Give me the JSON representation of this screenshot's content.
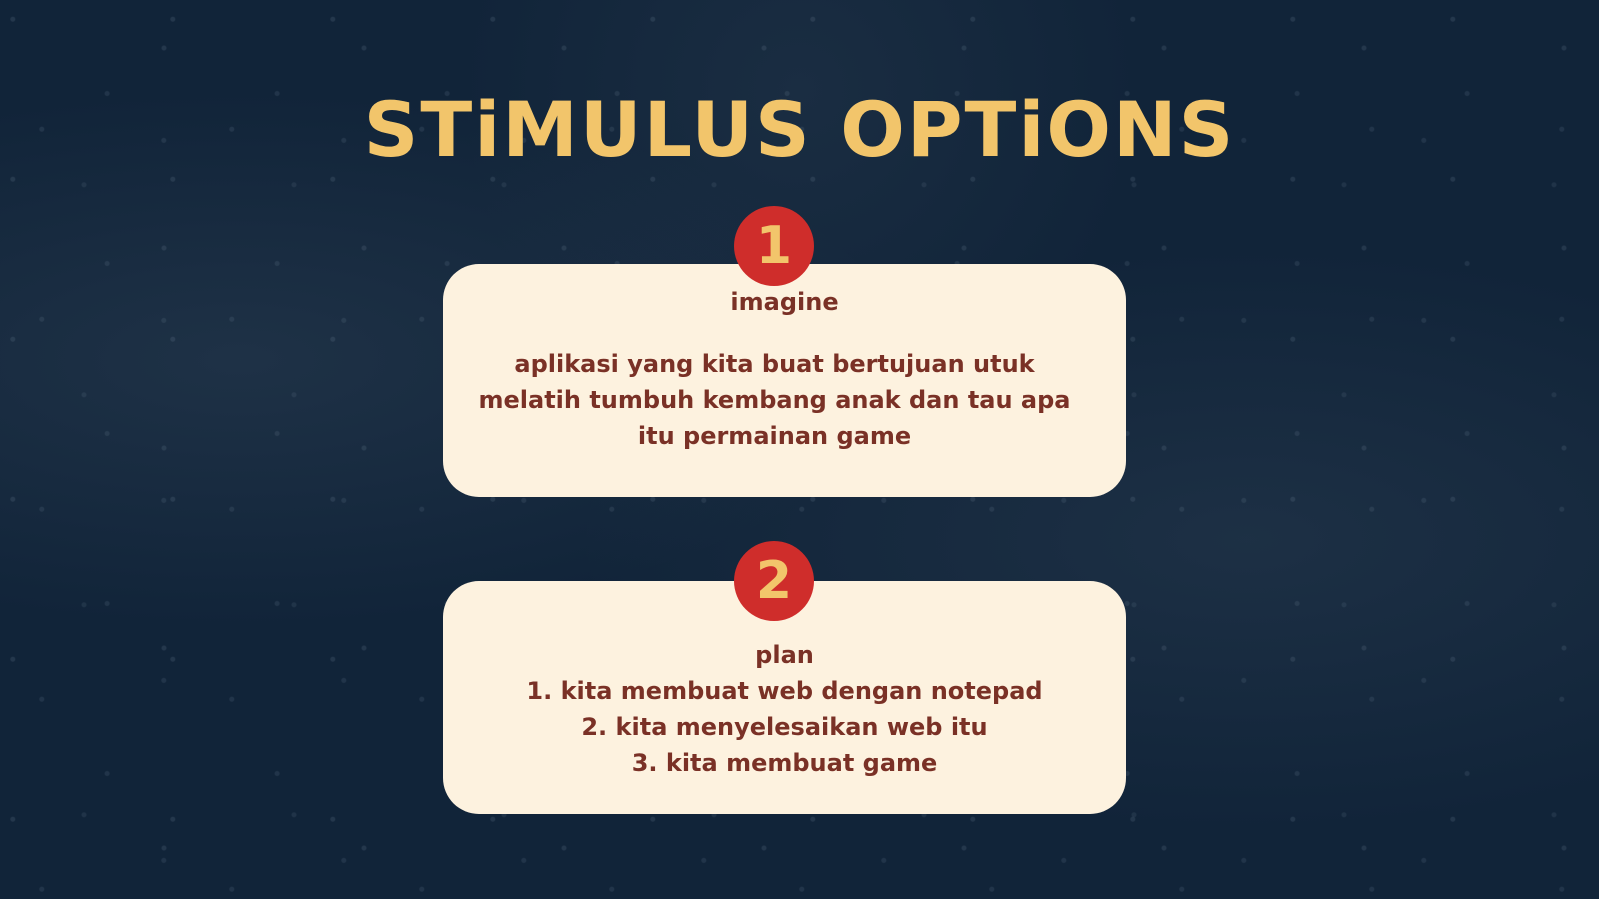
{
  "title": "STiMULUS OPTiONS",
  "options": [
    {
      "number": "1",
      "title": "imagine",
      "description": "aplikasi yang kita buat bertujuan utuk melatih tumbuh kembang anak dan tau apa itu permainan game"
    },
    {
      "number": "2",
      "title": "plan",
      "steps": [
        "1. kita membuat web dengan notepad",
        "2. kita menyelesaikan web itu",
        "3. kita membuat game"
      ]
    }
  ],
  "colors": {
    "background": "#112439",
    "title": "#f2c56b",
    "card": "#fdf2df",
    "text": "#7a3126",
    "badge": "#cf2d2b"
  }
}
